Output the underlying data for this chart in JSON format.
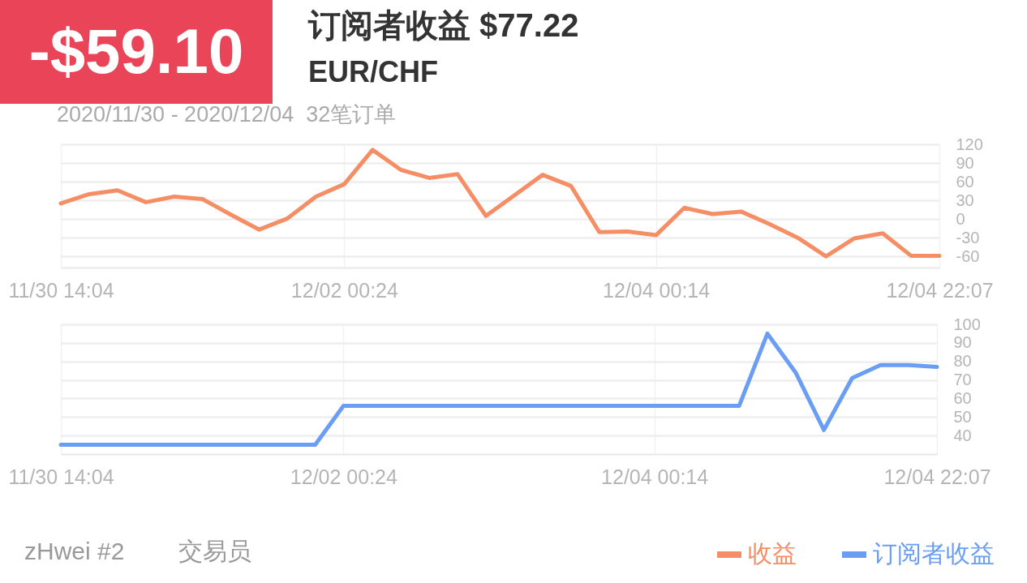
{
  "chart_data": [
    {
      "type": "line",
      "title": "订阅者收益 $77.22",
      "subtitle": "EUR/CHF",
      "annotations": [
        "-$59.10",
        "2020/11/30 - 2020/12/04  32笔订单"
      ],
      "categories": [
        "11/30 14:04",
        null,
        null,
        null,
        null,
        null,
        null,
        null,
        null,
        null,
        "12/02 00:24",
        null,
        null,
        null,
        null,
        null,
        null,
        null,
        null,
        null,
        null,
        "12/04 00:14",
        null,
        null,
        null,
        null,
        null,
        null,
        null,
        null,
        null,
        "12/04 22:07"
      ],
      "ylim": [
        -78,
        120
      ],
      "yticks": [
        120,
        90,
        60,
        30,
        0,
        -30,
        -60
      ],
      "grid": true,
      "series": [
        {
          "name": "收益",
          "color": "#f58d65",
          "values": [
            25,
            40,
            46,
            27,
            36,
            32,
            7,
            -17,
            1,
            36,
            56,
            111,
            79,
            66,
            72,
            5,
            38,
            71,
            53,
            -21,
            -20,
            -26,
            18,
            8,
            12,
            -8,
            -30,
            -60,
            -31,
            -23,
            -59,
            -59
          ]
        }
      ]
    },
    {
      "type": "line",
      "annotations": [
        "zHwei #2",
        "交易员"
      ],
      "categories": [
        "11/30 14:04",
        null,
        null,
        null,
        null,
        null,
        null,
        null,
        null,
        null,
        "12/02 00:24",
        null,
        null,
        null,
        null,
        null,
        null,
        null,
        null,
        null,
        null,
        "12/04 00:14",
        null,
        null,
        null,
        null,
        null,
        null,
        null,
        null,
        null,
        "12/04 22:07"
      ],
      "ylim": [
        30,
        100
      ],
      "yticks": [
        100,
        90,
        80,
        70,
        60,
        50,
        40
      ],
      "grid": true,
      "legend": "bottom right",
      "series": [
        {
          "name": "订阅者收益",
          "color": "#6a9ef4",
          "values": [
            35,
            35,
            35,
            35,
            35,
            35,
            35,
            35,
            35,
            35,
            56,
            56,
            56,
            56,
            56,
            56,
            56,
            56,
            56,
            56,
            56,
            56,
            56,
            56,
            56,
            95,
            74,
            43,
            71,
            78,
            78,
            77
          ]
        }
      ]
    }
  ]
}
